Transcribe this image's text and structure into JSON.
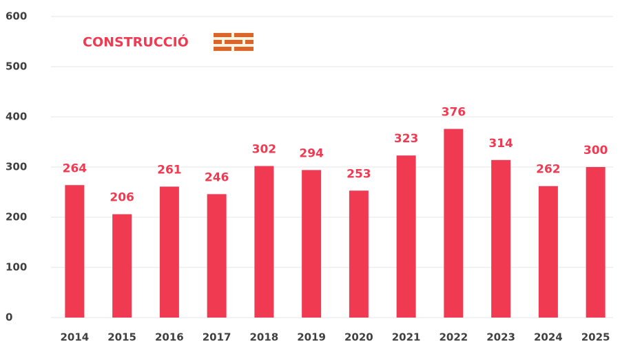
{
  "chart_data": {
    "type": "bar",
    "title": "CONSTRUCCIÓ",
    "categories": [
      "2014",
      "2015",
      "2016",
      "2017",
      "2018",
      "2019",
      "2020",
      "2021",
      "2022",
      "2023",
      "2024",
      "2025"
    ],
    "values": [
      264,
      206,
      261,
      246,
      302,
      294,
      253,
      323,
      376,
      314,
      262,
      300
    ],
    "color": "#ef3a52",
    "ylim": [
      0,
      600
    ],
    "yticks": [
      0,
      100,
      200,
      300,
      400,
      500,
      600
    ],
    "grid": true
  }
}
